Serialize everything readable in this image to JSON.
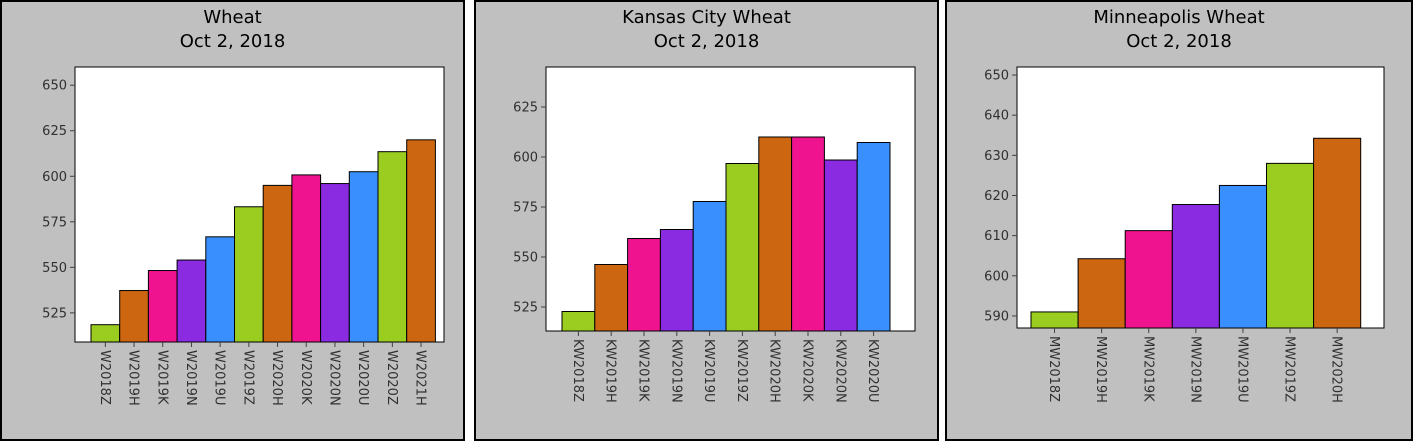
{
  "chart_data": [
    {
      "type": "bar",
      "title": "Wheat",
      "subtitle": "Oct 2, 2018",
      "categories": [
        "W2018Z",
        "W2019H",
        "W2019K",
        "W2019N",
        "W2019U",
        "W2019Z",
        "W2020H",
        "W2020K",
        "W2020N",
        "W2020U",
        "W2020Z",
        "W2021H"
      ],
      "values": [
        518.5,
        537.25,
        548.25,
        554.0,
        566.75,
        583.25,
        595.0,
        600.75,
        596.0,
        602.5,
        613.5,
        620.0
      ],
      "ylim": [
        509,
        660
      ],
      "yticks": [
        525,
        550,
        575,
        600,
        625,
        650
      ],
      "xlabel": "",
      "ylabel": "",
      "grid": false
    },
    {
      "type": "bar",
      "title": "Kansas City Wheat",
      "subtitle": "Oct 2, 2018",
      "categories": [
        "KW2018Z",
        "KW2019H",
        "KW2019K",
        "KW2019N",
        "KW2019U",
        "KW2019Z",
        "KW2020H",
        "KW2020K",
        "KW2020N",
        "KW2020U"
      ],
      "values": [
        522.75,
        546.25,
        559.25,
        563.75,
        577.75,
        596.75,
        610.0,
        610.0,
        598.5,
        607.25
      ],
      "ylim": [
        513,
        645
      ],
      "yticks": [
        525,
        550,
        575,
        600,
        625
      ],
      "xlabel": "",
      "ylabel": "",
      "grid": false
    },
    {
      "type": "bar",
      "title": "Minneapolis Wheat",
      "subtitle": "Oct 2, 2018",
      "categories": [
        "MW2018Z",
        "MW2019H",
        "MW2019K",
        "MW2019N",
        "MW2019U",
        "MW2019Z",
        "MW2020H"
      ],
      "values": [
        591.0,
        604.25,
        611.25,
        617.75,
        622.5,
        628.0,
        634.25
      ],
      "ylim": [
        587,
        652
      ],
      "yticks": [
        590,
        600,
        610,
        620,
        630,
        640,
        650
      ],
      "xlabel": "",
      "ylabel": "",
      "grid": false
    }
  ],
  "palette": [
    "#9acd20",
    "#cc6611",
    "#f0138f",
    "#8a2be2",
    "#3a8fff"
  ]
}
